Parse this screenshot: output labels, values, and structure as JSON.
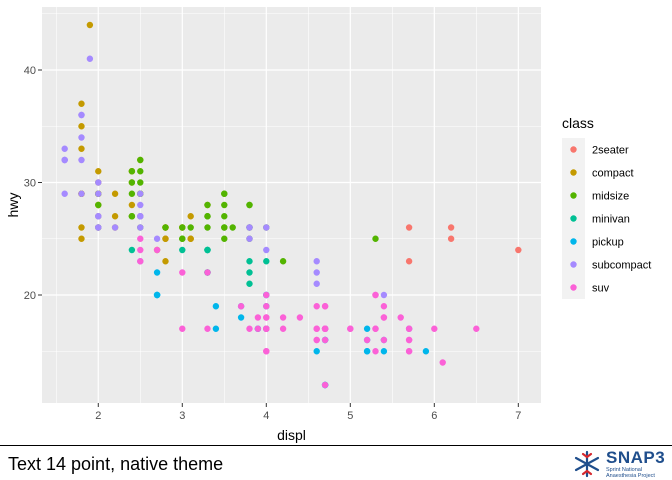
{
  "chart_data": {
    "type": "scatter",
    "title": "",
    "xlabel": "displ",
    "ylabel": "hwy",
    "xlim": [
      1.33,
      7.27
    ],
    "ylim": [
      10.4,
      45.6
    ],
    "xticks": [
      2,
      3,
      4,
      5,
      6,
      7
    ],
    "yticks": [
      20,
      30,
      40
    ],
    "grid": true,
    "legend_title": "class",
    "legend_position": "right",
    "series": [
      {
        "name": "2seater",
        "color": "#F8766D",
        "points": [
          [
            5.7,
            26
          ],
          [
            5.7,
            23
          ],
          [
            6.2,
            26
          ],
          [
            6.2,
            25
          ],
          [
            7.0,
            24
          ]
        ]
      },
      {
        "name": "compact",
        "color": "#C49A00",
        "points": [
          [
            1.8,
            29
          ],
          [
            1.8,
            29
          ],
          [
            2.0,
            31
          ],
          [
            2.0,
            30
          ],
          [
            2.8,
            26
          ],
          [
            2.8,
            26
          ],
          [
            3.1,
            27
          ],
          [
            1.8,
            26
          ],
          [
            1.8,
            25
          ],
          [
            2.0,
            28
          ],
          [
            2.0,
            27
          ],
          [
            2.8,
            25
          ],
          [
            2.8,
            25
          ],
          [
            3.1,
            25
          ],
          [
            3.1,
            25
          ],
          [
            2.2,
            27
          ],
          [
            2.2,
            29
          ],
          [
            2.4,
            31
          ],
          [
            2.4,
            31
          ],
          [
            3.0,
            26
          ],
          [
            3.0,
            26
          ],
          [
            3.3,
            28
          ],
          [
            1.8,
            29
          ],
          [
            1.8,
            29
          ],
          [
            2.0,
            28
          ],
          [
            2.0,
            29
          ],
          [
            2.8,
            26
          ],
          [
            1.9,
            44
          ],
          [
            2.0,
            29
          ],
          [
            2.0,
            26
          ],
          [
            2.0,
            29
          ],
          [
            2.5,
            29
          ],
          [
            2.5,
            29
          ],
          [
            2.8,
            23
          ],
          [
            1.8,
            37
          ],
          [
            1.8,
            35
          ],
          [
            1.8,
            33
          ],
          [
            2.0,
            29
          ],
          [
            2.4,
            27
          ],
          [
            2.4,
            30
          ],
          [
            2.5,
            32
          ],
          [
            2.5,
            27
          ],
          [
            2.7,
            24
          ],
          [
            2.2,
            26
          ],
          [
            2.4,
            28
          ]
        ]
      },
      {
        "name": "midsize",
        "color": "#53B400",
        "points": [
          [
            2.4,
            30
          ],
          [
            2.4,
            27
          ],
          [
            3.1,
            26
          ],
          [
            3.5,
            29
          ],
          [
            3.6,
            26
          ],
          [
            2.4,
            29
          ],
          [
            3.0,
            26
          ],
          [
            3.3,
            28
          ],
          [
            3.3,
            26
          ],
          [
            3.3,
            27
          ],
          [
            3.3,
            27
          ],
          [
            3.8,
            28
          ],
          [
            3.8,
            26
          ],
          [
            3.8,
            28
          ],
          [
            3.5,
            26
          ],
          [
            3.5,
            29
          ],
          [
            3.8,
            25
          ],
          [
            4.2,
            23
          ],
          [
            4.0,
            26
          ],
          [
            3.5,
            26
          ],
          [
            2.5,
            32
          ],
          [
            2.5,
            30
          ],
          [
            2.5,
            31
          ],
          [
            2.5,
            29
          ],
          [
            3.5,
            28
          ],
          [
            3.5,
            25
          ],
          [
            3.0,
            25
          ],
          [
            3.0,
            25
          ],
          [
            3.5,
            27
          ],
          [
            3.8,
            26
          ],
          [
            5.3,
            25
          ],
          [
            2.0,
            29
          ],
          [
            2.0,
            26
          ],
          [
            2.0,
            28
          ],
          [
            2.8,
            26
          ],
          [
            2.4,
            31
          ],
          [
            2.4,
            27
          ],
          [
            2.5,
            26
          ],
          [
            2.5,
            29
          ]
        ]
      },
      {
        "name": "minivan",
        "color": "#00C094",
        "points": [
          [
            2.4,
            24
          ],
          [
            3.0,
            24
          ],
          [
            3.3,
            22
          ],
          [
            3.3,
            22
          ],
          [
            3.3,
            24
          ],
          [
            3.3,
            24
          ],
          [
            3.3,
            24
          ],
          [
            3.8,
            22
          ],
          [
            3.8,
            21
          ],
          [
            3.8,
            23
          ],
          [
            4.0,
            23
          ]
        ]
      },
      {
        "name": "pickup",
        "color": "#00B6EB",
        "points": [
          [
            2.7,
            20
          ],
          [
            2.7,
            20
          ],
          [
            2.7,
            22
          ],
          [
            3.4,
            17
          ],
          [
            3.4,
            19
          ],
          [
            3.7,
            18
          ],
          [
            3.7,
            19
          ],
          [
            3.9,
            17
          ],
          [
            3.9,
            17
          ],
          [
            4.7,
            12
          ],
          [
            4.7,
            12
          ],
          [
            4.7,
            16
          ],
          [
            4.7,
            16
          ],
          [
            4.7,
            17
          ],
          [
            5.2,
            15
          ],
          [
            5.2,
            16
          ],
          [
            5.7,
            17
          ],
          [
            5.9,
            15
          ],
          [
            4.7,
            17
          ],
          [
            4.7,
            12
          ],
          [
            4.7,
            17
          ],
          [
            5.2,
            15
          ],
          [
            5.2,
            17
          ],
          [
            4.0,
            20
          ],
          [
            4.0,
            20
          ],
          [
            4.0,
            17
          ],
          [
            4.0,
            19
          ],
          [
            4.6,
            15
          ],
          [
            5.4,
            16
          ],
          [
            5.4,
            15
          ],
          [
            4.0,
            17
          ],
          [
            4.0,
            17
          ],
          [
            2.7,
            20
          ]
        ]
      },
      {
        "name": "subcompact",
        "color": "#A58AFF",
        "points": [
          [
            3.8,
            26
          ],
          [
            3.8,
            25
          ],
          [
            4.0,
            26
          ],
          [
            4.0,
            24
          ],
          [
            4.6,
            21
          ],
          [
            4.6,
            22
          ],
          [
            4.6,
            23
          ],
          [
            5.4,
            20
          ],
          [
            1.6,
            33
          ],
          [
            1.6,
            32
          ],
          [
            1.6,
            32
          ],
          [
            1.6,
            29
          ],
          [
            1.6,
            32
          ],
          [
            1.8,
            34
          ],
          [
            1.8,
            36
          ],
          [
            1.8,
            36
          ],
          [
            2.0,
            29
          ],
          [
            2.0,
            26
          ],
          [
            2.0,
            27
          ],
          [
            2.0,
            30
          ],
          [
            2.5,
            26
          ],
          [
            2.5,
            29
          ],
          [
            1.9,
            41
          ],
          [
            2.2,
            26
          ],
          [
            2.5,
            27
          ],
          [
            2.7,
            25
          ],
          [
            2.0,
            27
          ],
          [
            2.0,
            26
          ],
          [
            2.5,
            27
          ],
          [
            3.8,
            26
          ],
          [
            1.8,
            29
          ],
          [
            2.5,
            23
          ],
          [
            2.5,
            28
          ],
          [
            2.5,
            27
          ],
          [
            1.8,
            32
          ]
        ]
      },
      {
        "name": "suv",
        "color": "#FB61D7",
        "points": [
          [
            5.3,
            20
          ],
          [
            5.3,
            15
          ],
          [
            5.3,
            20
          ],
          [
            5.7,
            17
          ],
          [
            6.0,
            17
          ],
          [
            5.7,
            15
          ],
          [
            6.5,
            17
          ],
          [
            4.7,
            19
          ],
          [
            4.7,
            17
          ],
          [
            5.7,
            17
          ],
          [
            6.1,
            14
          ],
          [
            4.0,
            18
          ],
          [
            4.0,
            19
          ],
          [
            4.7,
            17
          ],
          [
            4.7,
            12
          ],
          [
            4.7,
            17
          ],
          [
            5.7,
            16
          ],
          [
            4.0,
            17
          ],
          [
            4.6,
            17
          ],
          [
            5.4,
            16
          ],
          [
            5.4,
            19
          ],
          [
            4.0,
            15
          ],
          [
            4.0,
            17
          ],
          [
            4.6,
            19
          ],
          [
            5.0,
            17
          ],
          [
            4.2,
            18
          ],
          [
            4.4,
            18
          ],
          [
            4.6,
            16
          ],
          [
            5.4,
            18
          ],
          [
            4.7,
            19
          ],
          [
            4.7,
            16
          ],
          [
            5.7,
            16
          ],
          [
            3.3,
            22
          ],
          [
            3.7,
            19
          ],
          [
            4.0,
            15
          ],
          [
            4.2,
            17
          ],
          [
            4.7,
            17
          ],
          [
            4.7,
            17
          ],
          [
            5.3,
            17
          ],
          [
            5.7,
            15
          ],
          [
            2.5,
            23
          ],
          [
            2.5,
            24
          ],
          [
            2.7,
            24
          ],
          [
            3.3,
            17
          ],
          [
            5.2,
            16
          ],
          [
            4.0,
            17
          ],
          [
            4.0,
            18
          ],
          [
            4.6,
            17
          ],
          [
            5.4,
            18
          ],
          [
            4.0,
            20
          ],
          [
            5.0,
            17
          ],
          [
            5.6,
            18
          ],
          [
            3.0,
            22
          ],
          [
            3.8,
            17
          ],
          [
            3.9,
            17
          ],
          [
            3.9,
            18
          ],
          [
            4.7,
            17
          ],
          [
            4.0,
            17
          ],
          [
            3.0,
            17
          ],
          [
            2.5,
            25
          ],
          [
            4.6,
            16
          ],
          [
            5.3,
            17
          ]
        ]
      }
    ]
  },
  "footer": {
    "caption": "Text 14 point, native theme",
    "logo_word": "SNAP3",
    "logo_sub": "Sprint National Anaesthesia Project"
  }
}
